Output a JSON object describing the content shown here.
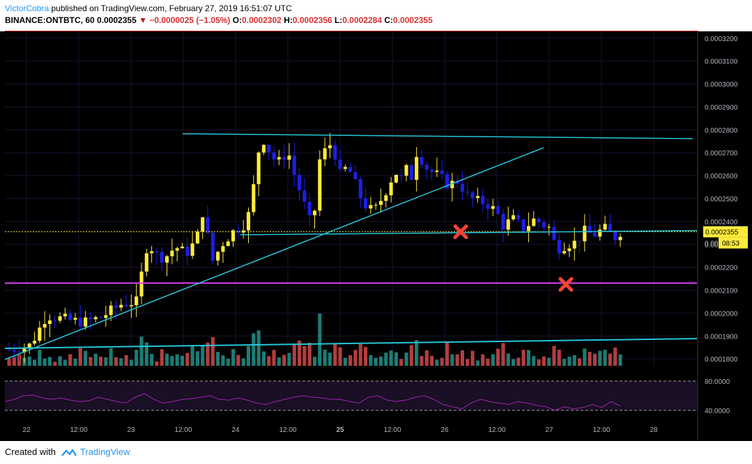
{
  "header": {
    "author": "VictorCobra",
    "published": "published on TradingView.com, February 27, 2019 16:51:07 UTC",
    "symbol": "BINANCE:ONTBTC, 60",
    "last": "0.0002355",
    "change": "−0.0000025 (−1.05%)",
    "o_label": "O:",
    "o_value": "0.0002302",
    "h_label": "H:",
    "h_value": "0.0002356",
    "l_label": "L:",
    "l_value": "0.0002284",
    "c_label": "C:",
    "c_value": "0.0002355"
  },
  "footer": {
    "created_with": "Created with",
    "brand": "TradingView"
  },
  "colors": {
    "background": "#000000",
    "grid": "#1b1233",
    "up": "#ffeb3b",
    "down": "#1e1ee6",
    "vol_up": "#26a69a",
    "vol_down": "#ef5350",
    "trendline": "#26c6da",
    "support": "#e040fb",
    "resistance": "#d32f2f",
    "rsi": "#9c27b0",
    "price_label_bg": "#ffeb3b",
    "marker": "#f44336",
    "axis_text": "#b2b5be"
  },
  "chart_data": {
    "type": "candlestick",
    "symbol": "BINANCE:ONTBTC",
    "interval": "60",
    "price_axis": {
      "ticks": [
        "0.0003200",
        "0.0003100",
        "0.0003000",
        "0.0002900",
        "0.0002800",
        "0.0002700",
        "0.0002600",
        "0.0002500",
        "0.0002400",
        "0.0002300",
        "0.0002200",
        "0.0002100",
        "0.0002000",
        "0.0001900",
        "0.0001800"
      ],
      "range": [
        0.000177,
        0.000323
      ]
    },
    "time_axis": {
      "labels": [
        "22",
        "12:00",
        "23",
        "12:00",
        "24",
        "12:00",
        "25",
        "12:00",
        "26",
        "12:00",
        "27",
        "12:00",
        "28"
      ],
      "bold": [
        "25"
      ]
    },
    "last_price_label": "0.0002355",
    "countdown_label": "08:53",
    "hidden_label": "0.00",
    "key_prices": [
      {
        "price": 0.0002131
      },
      {
        "price": 0.0003224
      }
    ],
    "price_path": [
      [
        0,
        1.84
      ],
      [
        4,
        1.86
      ],
      [
        7,
        1.99
      ],
      [
        11,
        1.97
      ],
      [
        14,
        1.96
      ],
      [
        17,
        1.98
      ],
      [
        21,
        2.04
      ],
      [
        24,
        2.05
      ],
      [
        25,
        2.22
      ],
      [
        26,
        2.32
      ],
      [
        27,
        2.26
      ],
      [
        29,
        2.24
      ],
      [
        31,
        2.29
      ],
      [
        33,
        2.26
      ],
      [
        35,
        2.32
      ],
      [
        36,
        2.45
      ],
      [
        37,
        2.34
      ],
      [
        38,
        2.23
      ],
      [
        40,
        2.31
      ],
      [
        42,
        2.36
      ],
      [
        44,
        2.39
      ],
      [
        45,
        2.45
      ],
      [
        46,
        2.62
      ],
      [
        47,
        2.78
      ],
      [
        48,
        2.73
      ],
      [
        50,
        2.65
      ],
      [
        52,
        2.71
      ],
      [
        53,
        2.62
      ],
      [
        55,
        2.48
      ],
      [
        56,
        2.4
      ],
      [
        57,
        2.45
      ],
      [
        58,
        2.68
      ],
      [
        60,
        2.74
      ],
      [
        61,
        2.68
      ],
      [
        62,
        2.58
      ],
      [
        63,
        2.65
      ],
      [
        65,
        2.54
      ],
      [
        66,
        2.48
      ],
      [
        68,
        2.44
      ],
      [
        70,
        2.52
      ],
      [
        72,
        2.62
      ],
      [
        73,
        2.58
      ],
      [
        74,
        2.63
      ],
      [
        75,
        2.59
      ],
      [
        76,
        2.7
      ],
      [
        77,
        2.67
      ],
      [
        78,
        2.63
      ],
      [
        80,
        2.6
      ],
      [
        82,
        2.56
      ],
      [
        84,
        2.58
      ],
      [
        85,
        2.52
      ],
      [
        87,
        2.49
      ],
      [
        89,
        2.48
      ],
      [
        91,
        2.44
      ],
      [
        92,
        2.38
      ],
      [
        94,
        2.41
      ],
      [
        96,
        2.37
      ],
      [
        98,
        2.41
      ],
      [
        100,
        2.38
      ],
      [
        101,
        2.37
      ],
      [
        102,
        2.28
      ],
      [
        104,
        2.3
      ],
      [
        106,
        2.31
      ],
      [
        107,
        2.36
      ],
      [
        109,
        2.34
      ],
      [
        111,
        2.37
      ],
      [
        113,
        2.33
      ],
      [
        114,
        2.355
      ]
    ],
    "rsi": {
      "levels": [
        "80.0000",
        "40.0000"
      ],
      "values": [
        52,
        55,
        60,
        61,
        57,
        55,
        57,
        54,
        52,
        53,
        58,
        55,
        52,
        50,
        58,
        63,
        55,
        50,
        52,
        55,
        56,
        58,
        60,
        55,
        54,
        57,
        54,
        50,
        48,
        52,
        55,
        58,
        60,
        58,
        57,
        55,
        55,
        52,
        50,
        58,
        60,
        54,
        52,
        54,
        58,
        60,
        55,
        48,
        45,
        42,
        50,
        55,
        52,
        50,
        48,
        52,
        50,
        47,
        45,
        40,
        45,
        42,
        44,
        48,
        44,
        52,
        46
      ]
    },
    "annotations": [
      {
        "type": "x-mark",
        "price": 0.0002355,
        "time_index": 82
      },
      {
        "type": "x-mark",
        "price": 0.0002125,
        "time_index": 102
      }
    ]
  }
}
